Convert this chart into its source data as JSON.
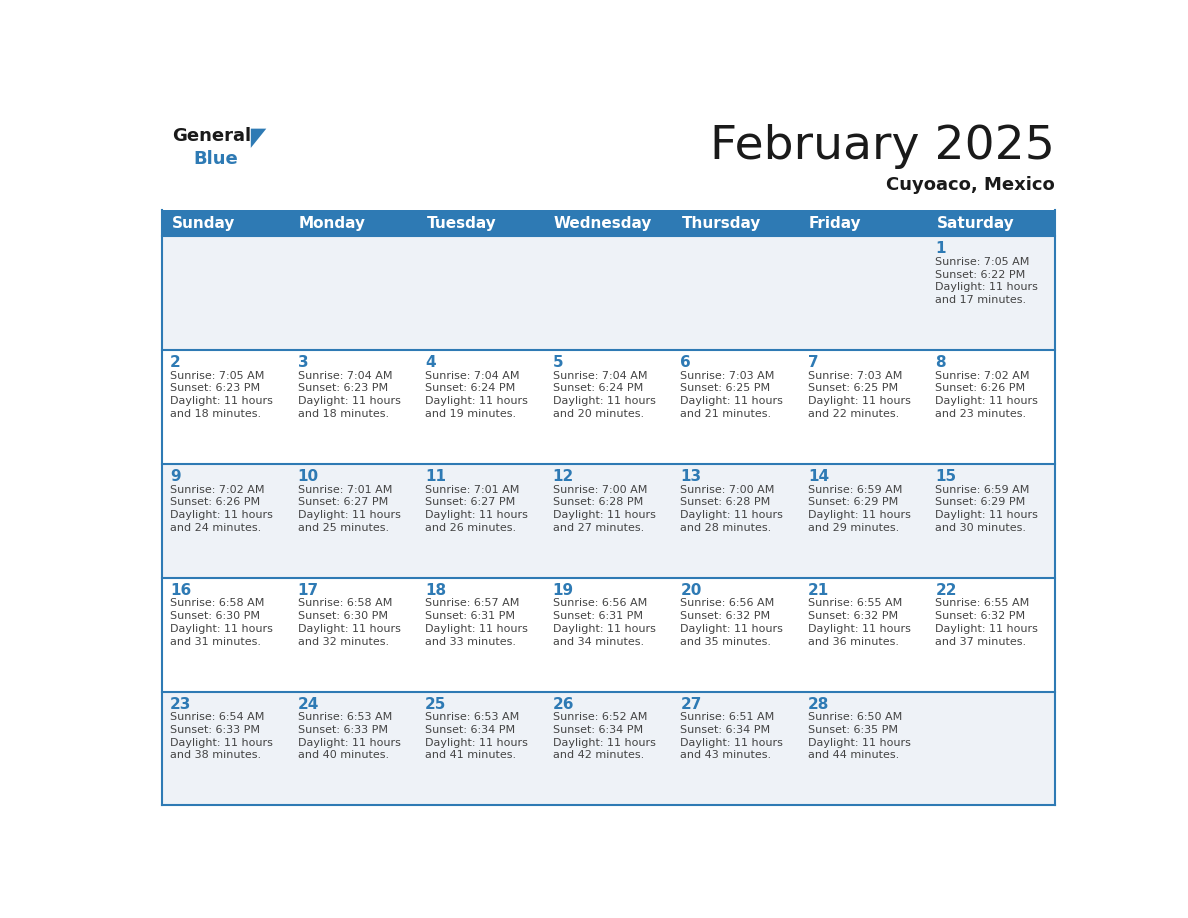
{
  "title": "February 2025",
  "subtitle": "Cuyoaco, Mexico",
  "days_of_week": [
    "Sunday",
    "Monday",
    "Tuesday",
    "Wednesday",
    "Thursday",
    "Friday",
    "Saturday"
  ],
  "header_bg": "#2e7ab4",
  "header_text": "#ffffff",
  "cell_bg_even": "#eef2f7",
  "cell_bg_odd": "#ffffff",
  "border_color": "#2e7ab4",
  "day_num_color": "#2e7ab4",
  "text_color": "#444444",
  "title_color": "#1a1a1a",
  "calendar_data": [
    [
      null,
      null,
      null,
      null,
      null,
      null,
      {
        "day": 1,
        "sunrise": "7:05 AM",
        "sunset": "6:22 PM",
        "daylight_h": "11 hours",
        "daylight_m": "and 17 minutes."
      }
    ],
    [
      {
        "day": 2,
        "sunrise": "7:05 AM",
        "sunset": "6:23 PM",
        "daylight_h": "11 hours",
        "daylight_m": "and 18 minutes."
      },
      {
        "day": 3,
        "sunrise": "7:04 AM",
        "sunset": "6:23 PM",
        "daylight_h": "11 hours",
        "daylight_m": "and 18 minutes."
      },
      {
        "day": 4,
        "sunrise": "7:04 AM",
        "sunset": "6:24 PM",
        "daylight_h": "11 hours",
        "daylight_m": "and 19 minutes."
      },
      {
        "day": 5,
        "sunrise": "7:04 AM",
        "sunset": "6:24 PM",
        "daylight_h": "11 hours",
        "daylight_m": "and 20 minutes."
      },
      {
        "day": 6,
        "sunrise": "7:03 AM",
        "sunset": "6:25 PM",
        "daylight_h": "11 hours",
        "daylight_m": "and 21 minutes."
      },
      {
        "day": 7,
        "sunrise": "7:03 AM",
        "sunset": "6:25 PM",
        "daylight_h": "11 hours",
        "daylight_m": "and 22 minutes."
      },
      {
        "day": 8,
        "sunrise": "7:02 AM",
        "sunset": "6:26 PM",
        "daylight_h": "11 hours",
        "daylight_m": "and 23 minutes."
      }
    ],
    [
      {
        "day": 9,
        "sunrise": "7:02 AM",
        "sunset": "6:26 PM",
        "daylight_h": "11 hours",
        "daylight_m": "and 24 minutes."
      },
      {
        "day": 10,
        "sunrise": "7:01 AM",
        "sunset": "6:27 PM",
        "daylight_h": "11 hours",
        "daylight_m": "and 25 minutes."
      },
      {
        "day": 11,
        "sunrise": "7:01 AM",
        "sunset": "6:27 PM",
        "daylight_h": "11 hours",
        "daylight_m": "and 26 minutes."
      },
      {
        "day": 12,
        "sunrise": "7:00 AM",
        "sunset": "6:28 PM",
        "daylight_h": "11 hours",
        "daylight_m": "and 27 minutes."
      },
      {
        "day": 13,
        "sunrise": "7:00 AM",
        "sunset": "6:28 PM",
        "daylight_h": "11 hours",
        "daylight_m": "and 28 minutes."
      },
      {
        "day": 14,
        "sunrise": "6:59 AM",
        "sunset": "6:29 PM",
        "daylight_h": "11 hours",
        "daylight_m": "and 29 minutes."
      },
      {
        "day": 15,
        "sunrise": "6:59 AM",
        "sunset": "6:29 PM",
        "daylight_h": "11 hours",
        "daylight_m": "and 30 minutes."
      }
    ],
    [
      {
        "day": 16,
        "sunrise": "6:58 AM",
        "sunset": "6:30 PM",
        "daylight_h": "11 hours",
        "daylight_m": "and 31 minutes."
      },
      {
        "day": 17,
        "sunrise": "6:58 AM",
        "sunset": "6:30 PM",
        "daylight_h": "11 hours",
        "daylight_m": "and 32 minutes."
      },
      {
        "day": 18,
        "sunrise": "6:57 AM",
        "sunset": "6:31 PM",
        "daylight_h": "11 hours",
        "daylight_m": "and 33 minutes."
      },
      {
        "day": 19,
        "sunrise": "6:56 AM",
        "sunset": "6:31 PM",
        "daylight_h": "11 hours",
        "daylight_m": "and 34 minutes."
      },
      {
        "day": 20,
        "sunrise": "6:56 AM",
        "sunset": "6:32 PM",
        "daylight_h": "11 hours",
        "daylight_m": "and 35 minutes."
      },
      {
        "day": 21,
        "sunrise": "6:55 AM",
        "sunset": "6:32 PM",
        "daylight_h": "11 hours",
        "daylight_m": "and 36 minutes."
      },
      {
        "day": 22,
        "sunrise": "6:55 AM",
        "sunset": "6:32 PM",
        "daylight_h": "11 hours",
        "daylight_m": "and 37 minutes."
      }
    ],
    [
      {
        "day": 23,
        "sunrise": "6:54 AM",
        "sunset": "6:33 PM",
        "daylight_h": "11 hours",
        "daylight_m": "and 38 minutes."
      },
      {
        "day": 24,
        "sunrise": "6:53 AM",
        "sunset": "6:33 PM",
        "daylight_h": "11 hours",
        "daylight_m": "and 40 minutes."
      },
      {
        "day": 25,
        "sunrise": "6:53 AM",
        "sunset": "6:34 PM",
        "daylight_h": "11 hours",
        "daylight_m": "and 41 minutes."
      },
      {
        "day": 26,
        "sunrise": "6:52 AM",
        "sunset": "6:34 PM",
        "daylight_h": "11 hours",
        "daylight_m": "and 42 minutes."
      },
      {
        "day": 27,
        "sunrise": "6:51 AM",
        "sunset": "6:34 PM",
        "daylight_h": "11 hours",
        "daylight_m": "and 43 minutes."
      },
      {
        "day": 28,
        "sunrise": "6:50 AM",
        "sunset": "6:35 PM",
        "daylight_h": "11 hours",
        "daylight_m": "and 44 minutes."
      },
      null
    ]
  ]
}
